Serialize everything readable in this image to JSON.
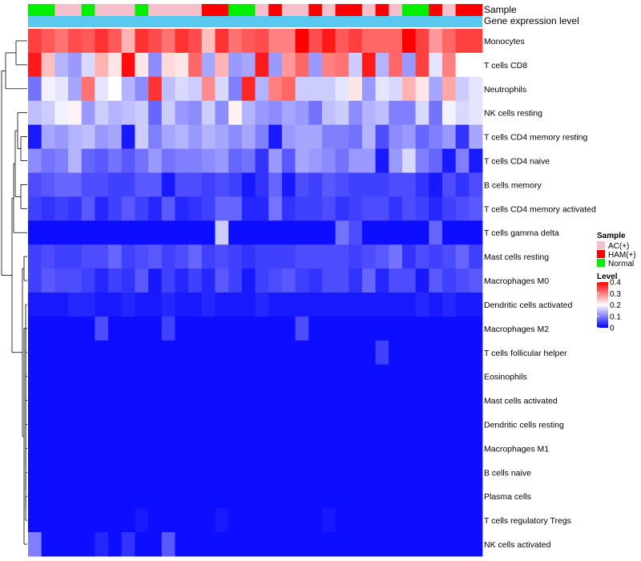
{
  "chart_data": {
    "type": "heatmap",
    "title": "",
    "annotation_tracks": [
      "Sample",
      "Gene expression level"
    ],
    "rows": [
      "Monocytes",
      "T cells CD8",
      "Neutrophils",
      "NK cells resting",
      "T cells CD4 memory resting",
      "T cells CD4 naive",
      "B cells memory",
      "T cells CD4 memory activated",
      "T cells gamma delta",
      "Mast cells resting",
      "Macrophages M0",
      "Dendritic cells activated",
      "Macrophages M2",
      "T cells follicular helper",
      "Eosinophils",
      "Mast cells activated",
      "Dendritic cells resting",
      "Macrophages M1",
      "B cells naive",
      "Plasma cells",
      "T cells regulatory  Tregs",
      "NK cells activated"
    ],
    "sample_groups": [
      "Normal",
      "Normal",
      "AC(+)",
      "AC(+)",
      "Normal",
      "AC(+)",
      "AC(+)",
      "AC(+)",
      "Normal",
      "AC(+)",
      "AC(+)",
      "AC(+)",
      "AC(+)",
      "HAM(+)",
      "HAM(+)",
      "Normal",
      "Normal",
      "AC(+)",
      "HAM(+)",
      "AC(+)",
      "AC(+)",
      "HAM(+)",
      "AC(+)",
      "HAM(+)",
      "HAM(+)",
      "AC(+)",
      "HAM(+)",
      "AC(+)",
      "Normal",
      "Normal",
      "HAM(+)",
      "AC(+)",
      "HAM(+)",
      "HAM(+)"
    ],
    "gene_expression_color": "#5bc8f0",
    "values": [
      [
        0.35,
        0.33,
        0.31,
        0.34,
        0.33,
        0.36,
        0.33,
        0.26,
        0.36,
        0.34,
        0.31,
        0.36,
        0.34,
        0.25,
        0.36,
        0.31,
        0.33,
        0.34,
        0.3,
        0.3,
        0.4,
        0.34,
        0.38,
        0.33,
        0.35,
        0.32,
        0.32,
        0.32,
        0.4,
        0.35,
        0.28,
        0.32,
        0.35,
        0.35
      ],
      [
        0.38,
        0.25,
        0.14,
        0.12,
        0.17,
        0.26,
        0.22,
        0.39,
        0.22,
        0.11,
        0.23,
        0.22,
        0.32,
        0.13,
        0.26,
        0.12,
        0.13,
        0.38,
        0.12,
        0.28,
        0.32,
        0.12,
        0.3,
        0.31,
        0.16,
        0.38,
        0.14,
        0.32,
        0.12,
        0.35,
        0.18,
        0.3,
        0.2,
        0.2
      ],
      [
        0.09,
        0.19,
        0.18,
        0.13,
        0.31,
        0.18,
        0.2,
        0.14,
        0.11,
        0.36,
        0.15,
        0.17,
        0.16,
        0.29,
        0.17,
        0.1,
        0.37,
        0.14,
        0.3,
        0.32,
        0.16,
        0.16,
        0.16,
        0.18,
        0.22,
        0.12,
        0.18,
        0.17,
        0.26,
        0.22,
        0.13,
        0.27,
        0.16,
        0.18
      ],
      [
        0.15,
        0.16,
        0.19,
        0.21,
        0.12,
        0.16,
        0.14,
        0.15,
        0.16,
        0.08,
        0.16,
        0.12,
        0.11,
        0.16,
        0.11,
        0.21,
        0.14,
        0.12,
        0.11,
        0.13,
        0.12,
        0.09,
        0.15,
        0.16,
        0.11,
        0.14,
        0.15,
        0.1,
        0.1,
        0.17,
        0.09,
        0.19,
        0.17,
        0.18
      ],
      [
        0.02,
        0.13,
        0.12,
        0.14,
        0.15,
        0.12,
        0.13,
        0.02,
        0.16,
        0.1,
        0.13,
        0.14,
        0.12,
        0.14,
        0.13,
        0.11,
        0.13,
        0.1,
        0.02,
        0.12,
        0.13,
        0.13,
        0.1,
        0.1,
        0.09,
        0.14,
        0.06,
        0.11,
        0.12,
        0.08,
        0.1,
        0.12,
        0.04,
        0.13
      ],
      [
        0.11,
        0.09,
        0.1,
        0.14,
        0.08,
        0.07,
        0.09,
        0.07,
        0.09,
        0.12,
        0.09,
        0.1,
        0.1,
        0.11,
        0.12,
        0.08,
        0.09,
        0.04,
        0.12,
        0.07,
        0.13,
        0.12,
        0.11,
        0.09,
        0.12,
        0.12,
        0.02,
        0.12,
        0.17,
        0.1,
        0.08,
        0.02,
        0.1,
        0.02
      ],
      [
        0.06,
        0.07,
        0.08,
        0.08,
        0.06,
        0.06,
        0.05,
        0.05,
        0.07,
        0.07,
        0.02,
        0.06,
        0.06,
        0.05,
        0.06,
        0.05,
        0.02,
        0.04,
        0.08,
        0.02,
        0.06,
        0.05,
        0.07,
        0.06,
        0.05,
        0.05,
        0.05,
        0.06,
        0.06,
        0.04,
        0.02,
        0.06,
        0.04,
        0.06
      ],
      [
        0.05,
        0.04,
        0.05,
        0.04,
        0.07,
        0.03,
        0.05,
        0.07,
        0.05,
        0.03,
        0.07,
        0.03,
        0.04,
        0.05,
        0.08,
        0.08,
        0.03,
        0.03,
        0.09,
        0.04,
        0.05,
        0.05,
        0.06,
        0.04,
        0.05,
        0.06,
        0.06,
        0.04,
        0.06,
        0.05,
        0.03,
        0.05,
        0.06,
        0.07
      ],
      [
        0.01,
        0.01,
        0.01,
        0.01,
        0.01,
        0.01,
        0.01,
        0.01,
        0.01,
        0.01,
        0.01,
        0.01,
        0.01,
        0.01,
        0.16,
        0.01,
        0.01,
        0.01,
        0.01,
        0.01,
        0.01,
        0.01,
        0.01,
        0.09,
        0.06,
        0.01,
        0.01,
        0.01,
        0.01,
        0.01,
        0.08,
        0.01,
        0.01,
        0.01
      ],
      [
        0.05,
        0.06,
        0.05,
        0.05,
        0.06,
        0.06,
        0.08,
        0.05,
        0.06,
        0.07,
        0.05,
        0.06,
        0.08,
        0.05,
        0.06,
        0.05,
        0.04,
        0.05,
        0.05,
        0.05,
        0.06,
        0.06,
        0.06,
        0.06,
        0.05,
        0.06,
        0.07,
        0.09,
        0.04,
        0.06,
        0.05,
        0.06,
        0.08,
        0.05
      ],
      [
        0.05,
        0.07,
        0.06,
        0.06,
        0.05,
        0.03,
        0.05,
        0.04,
        0.07,
        0.02,
        0.05,
        0.03,
        0.05,
        0.03,
        0.07,
        0.05,
        0.02,
        0.05,
        0.06,
        0.07,
        0.05,
        0.04,
        0.06,
        0.06,
        0.04,
        0.08,
        0.03,
        0.06,
        0.06,
        0.02,
        0.07,
        0.05,
        0.06,
        0.07
      ],
      [
        0.02,
        0.02,
        0.02,
        0.03,
        0.03,
        0.02,
        0.02,
        0.03,
        0.02,
        0.02,
        0.03,
        0.02,
        0.02,
        0.03,
        0.02,
        0.02,
        0.02,
        0.03,
        0.02,
        0.02,
        0.02,
        0.02,
        0.02,
        0.02,
        0.02,
        0.02,
        0.02,
        0.02,
        0.02,
        0.03,
        0.02,
        0.03,
        0.02,
        0.02
      ],
      [
        0.01,
        0.01,
        0.01,
        0.01,
        0.01,
        0.06,
        0.01,
        0.01,
        0.01,
        0.01,
        0.05,
        0.01,
        0.01,
        0.01,
        0.01,
        0.01,
        0.01,
        0.01,
        0.01,
        0.01,
        0.06,
        0.01,
        0.01,
        0.01,
        0.01,
        0.01,
        0.01,
        0.01,
        0.01,
        0.01,
        0.01,
        0.01,
        0.01,
        0.01
      ],
      [
        0.01,
        0.01,
        0.01,
        0.01,
        0.01,
        0.01,
        0.01,
        0.01,
        0.01,
        0.01,
        0.01,
        0.01,
        0.01,
        0.01,
        0.01,
        0.01,
        0.01,
        0.01,
        0.01,
        0.01,
        0.01,
        0.01,
        0.01,
        0.01,
        0.01,
        0.01,
        0.05,
        0.01,
        0.01,
        0.01,
        0.01,
        0.01,
        0.01,
        0.01
      ],
      [
        0.01,
        0.01,
        0.01,
        0.01,
        0.01,
        0.01,
        0.01,
        0.01,
        0.01,
        0.01,
        0.01,
        0.01,
        0.01,
        0.01,
        0.01,
        0.01,
        0.01,
        0.01,
        0.01,
        0.01,
        0.01,
        0.01,
        0.01,
        0.01,
        0.01,
        0.01,
        0.01,
        0.01,
        0.01,
        0.01,
        0.01,
        0.01,
        0.01,
        0.01
      ],
      [
        0.01,
        0.01,
        0.01,
        0.01,
        0.01,
        0.01,
        0.01,
        0.01,
        0.01,
        0.01,
        0.01,
        0.01,
        0.01,
        0.01,
        0.01,
        0.01,
        0.01,
        0.01,
        0.01,
        0.01,
        0.01,
        0.01,
        0.01,
        0.01,
        0.01,
        0.01,
        0.01,
        0.01,
        0.01,
        0.01,
        0.01,
        0.01,
        0.01,
        0.01
      ],
      [
        0.01,
        0.01,
        0.01,
        0.01,
        0.01,
        0.01,
        0.01,
        0.01,
        0.01,
        0.01,
        0.01,
        0.01,
        0.01,
        0.01,
        0.01,
        0.01,
        0.01,
        0.01,
        0.01,
        0.01,
        0.01,
        0.01,
        0.01,
        0.01,
        0.01,
        0.01,
        0.01,
        0.01,
        0.01,
        0.01,
        0.01,
        0.01,
        0.01,
        0.01
      ],
      [
        0.01,
        0.01,
        0.01,
        0.01,
        0.01,
        0.01,
        0.01,
        0.01,
        0.01,
        0.01,
        0.01,
        0.01,
        0.01,
        0.01,
        0.01,
        0.01,
        0.01,
        0.01,
        0.01,
        0.01,
        0.01,
        0.01,
        0.01,
        0.01,
        0.01,
        0.01,
        0.01,
        0.01,
        0.01,
        0.01,
        0.01,
        0.01,
        0.01,
        0.01
      ],
      [
        0.01,
        0.01,
        0.01,
        0.01,
        0.01,
        0.01,
        0.01,
        0.01,
        0.01,
        0.01,
        0.01,
        0.01,
        0.01,
        0.01,
        0.01,
        0.01,
        0.01,
        0.01,
        0.01,
        0.01,
        0.01,
        0.01,
        0.01,
        0.01,
        0.01,
        0.01,
        0.01,
        0.01,
        0.01,
        0.01,
        0.01,
        0.01,
        0.01,
        0.01
      ],
      [
        0.01,
        0.01,
        0.01,
        0.01,
        0.01,
        0.01,
        0.01,
        0.01,
        0.01,
        0.01,
        0.01,
        0.01,
        0.01,
        0.01,
        0.01,
        0.01,
        0.01,
        0.01,
        0.01,
        0.01,
        0.01,
        0.01,
        0.01,
        0.01,
        0.01,
        0.01,
        0.01,
        0.01,
        0.01,
        0.01,
        0.01,
        0.01,
        0.01,
        0.01
      ],
      [
        0.01,
        0.01,
        0.01,
        0.01,
        0.01,
        0.01,
        0.01,
        0.01,
        0.02,
        0.01,
        0.01,
        0.01,
        0.01,
        0.01,
        0.02,
        0.01,
        0.01,
        0.01,
        0.01,
        0.01,
        0.01,
        0.01,
        0.02,
        0.01,
        0.01,
        0.01,
        0.01,
        0.01,
        0.01,
        0.01,
        0.01,
        0.01,
        0.01,
        0.01
      ],
      [
        0.1,
        0.01,
        0.01,
        0.01,
        0.01,
        0.03,
        0.01,
        0.04,
        0.01,
        0.01,
        0.07,
        0.01,
        0.01,
        0.01,
        0.01,
        0.01,
        0.01,
        0.01,
        0.01,
        0.01,
        0.01,
        0.01,
        0.01,
        0.01,
        0.01,
        0.01,
        0.01,
        0.01,
        0.01,
        0.01,
        0.01,
        0.01,
        0.01,
        0.01
      ]
    ],
    "legend_sample": {
      "title": "Sample",
      "entries": [
        {
          "label": "AC(+)",
          "color": "#f5c0cb"
        },
        {
          "label": "HAM(+)",
          "color": "#ff0000"
        },
        {
          "label": "Normal",
          "color": "#00ee00"
        }
      ]
    },
    "legend_level": {
      "title": "Level",
      "ticks": [
        "0.4",
        "0.3",
        "0.2",
        "0.1",
        "0"
      ],
      "range": [
        0,
        0.4
      ],
      "color_low": "#0000ff",
      "color_mid": "#ffffff",
      "color_high": "#ff0000"
    }
  }
}
